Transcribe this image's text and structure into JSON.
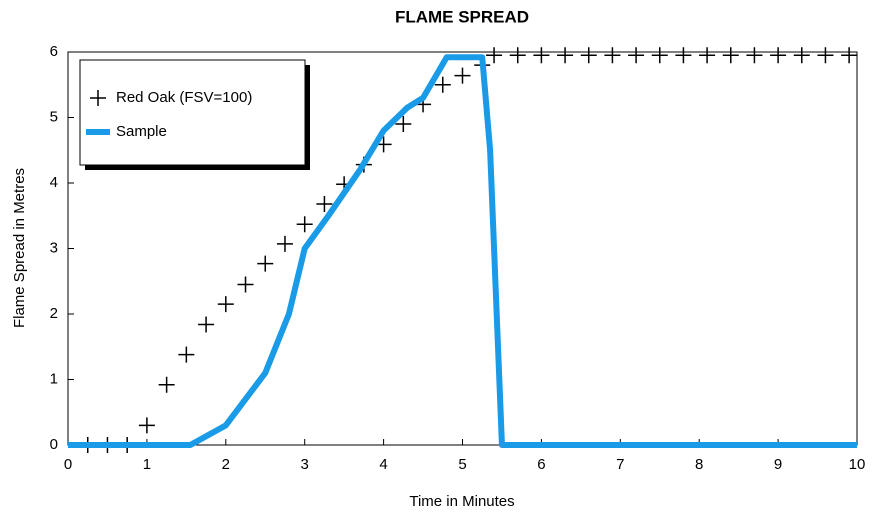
{
  "chart_data": {
    "type": "line",
    "title": "FLAME SPREAD",
    "x_label": "Time in Minutes",
    "y_label": "Flame Spread in Metres",
    "xlim": [
      0,
      10
    ],
    "xticks": [
      0,
      1,
      2,
      3,
      4,
      5,
      6,
      7,
      8,
      9,
      10
    ],
    "ylim": [
      0,
      6
    ],
    "yticks": [
      0,
      1,
      2,
      3,
      4,
      5,
      6
    ],
    "legend": "top-left",
    "series": [
      {
        "name": "Red Oak (FSV=100)",
        "color": "#000000",
        "marker": "plus",
        "x": [
          0.25,
          0.5,
          0.75,
          1.0,
          1.25,
          1.5,
          1.75,
          2.0,
          2.25,
          2.5,
          2.75,
          3.0,
          3.25,
          3.5,
          3.75,
          4.0,
          4.25,
          4.5,
          4.75,
          5.0,
          5.25,
          5.4,
          5.7,
          6.0,
          6.3,
          6.6,
          6.9,
          7.2,
          7.5,
          7.8,
          8.1,
          8.4,
          8.7,
          9.0,
          9.3,
          9.6,
          9.9
        ],
        "values": [
          0,
          0,
          0,
          0.3,
          0.92,
          1.38,
          1.84,
          2.15,
          2.45,
          2.77,
          3.07,
          3.37,
          3.68,
          3.98,
          4.28,
          4.59,
          4.9,
          5.2,
          5.5,
          5.64,
          5.8,
          5.95,
          5.95,
          5.95,
          5.95,
          5.95,
          5.95,
          5.95,
          5.95,
          5.95,
          5.95,
          5.95,
          5.95,
          5.95,
          5.95,
          5.95,
          5.95
        ]
      },
      {
        "name": "Sample",
        "color": "#1a9be8",
        "marker": "line",
        "x": [
          0,
          1.55,
          2.0,
          2.5,
          2.8,
          3.0,
          3.3,
          3.7,
          4.0,
          4.3,
          4.5,
          4.8,
          5.25,
          5.35,
          5.5,
          10
        ],
        "values": [
          0,
          0,
          0.3,
          1.1,
          2.0,
          3.0,
          3.5,
          4.2,
          4.8,
          5.15,
          5.3,
          5.92,
          5.92,
          4.5,
          0,
          0
        ]
      }
    ]
  }
}
